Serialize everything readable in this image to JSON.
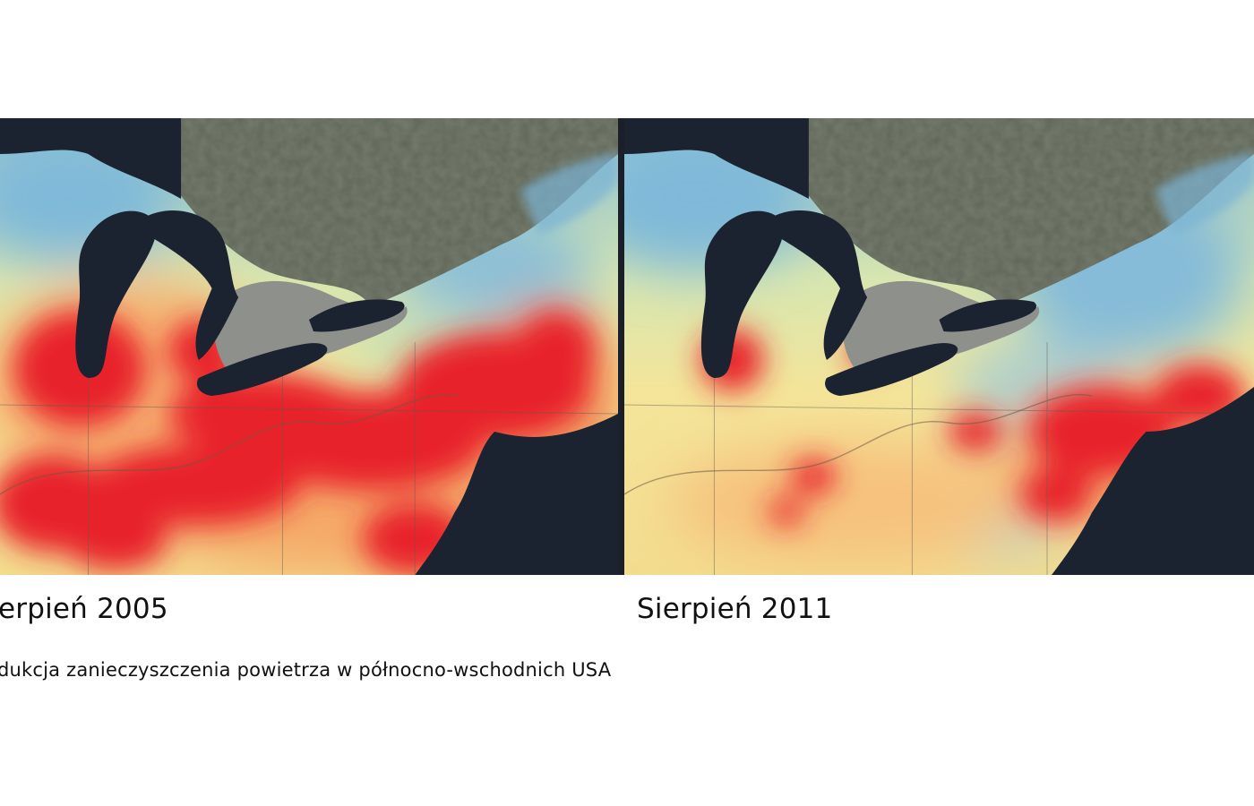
{
  "panels": [
    {
      "label": "erpień 2005",
      "pollution_level": "high"
    },
    {
      "label": "Sierpień 2011",
      "pollution_level": "low"
    }
  ],
  "caption": "dukcja zanieczyszczenia powietrza w północno-wschodnich USA",
  "colors": {
    "water": "#1b2230",
    "land_canada": "#5f6657",
    "land_ontario": "#8e918b",
    "low_pollution": "#7fb9d9",
    "medium_pollution": "#f3e79b",
    "high_pollution": "#e8202a"
  }
}
